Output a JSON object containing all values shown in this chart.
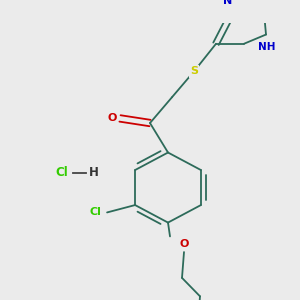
{
  "background_color": "#ebebeb",
  "bond_color": "#2d6b5a",
  "atom_colors": {
    "O": "#cc0000",
    "N": "#0000cc",
    "S": "#cccc00",
    "Cl": "#33cc00",
    "HCl_Cl": "#33cc00",
    "H": "#333333"
  },
  "figsize": [
    3.0,
    3.0
  ],
  "dpi": 100,
  "lw": 1.3,
  "fontsize": 7.5
}
